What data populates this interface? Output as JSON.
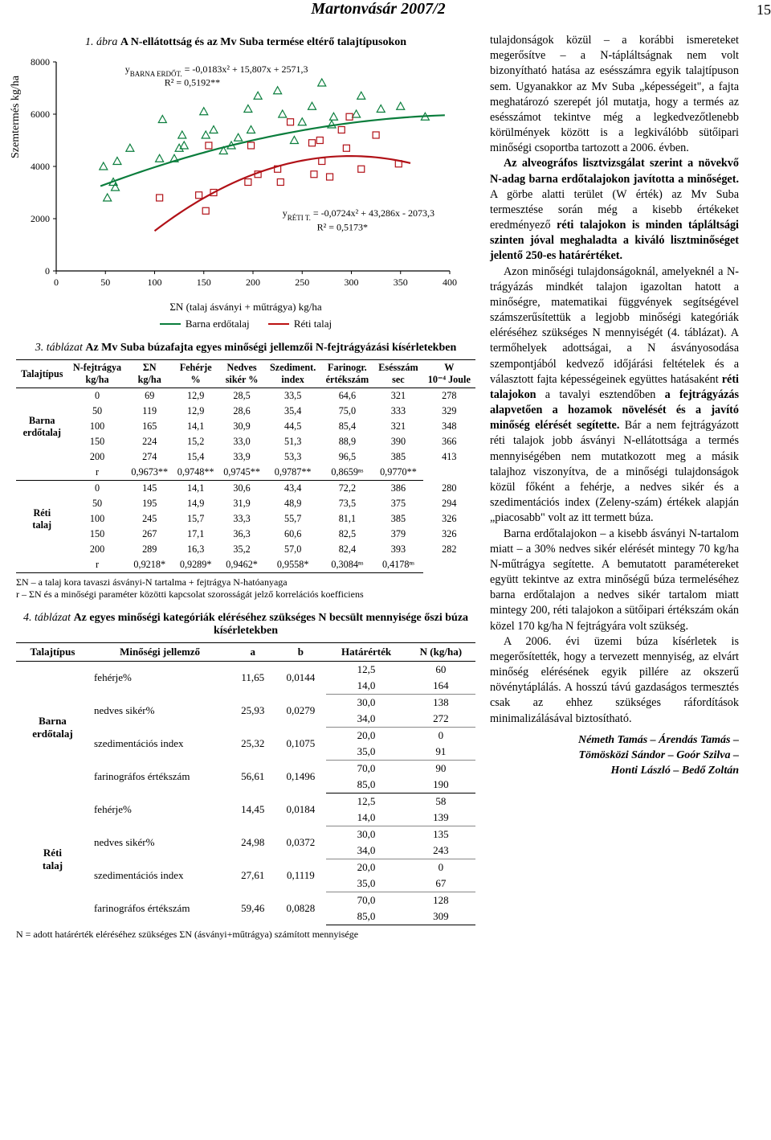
{
  "header": {
    "title": "Martonvásár 2007/2",
    "page": "15"
  },
  "figure1": {
    "title_num": "1. ábra",
    "title_text": "A N-ellátottság és az Mv Suba termése eltérő talajtípusokon",
    "type": "scatter",
    "ylabel": "Szemtermés kg/ha",
    "ylim": [
      0,
      8000
    ],
    "ytick_step": 2000,
    "xlim": [
      0,
      400
    ],
    "xtick_step": 50,
    "background": "#ffffff",
    "series": [
      {
        "name": "Barna erdőtalaj",
        "color": "#0a7d3c",
        "marker": "triangle",
        "points": [
          [
            48,
            4000
          ],
          [
            52,
            2800
          ],
          [
            58,
            3400
          ],
          [
            60,
            3200
          ],
          [
            62,
            4200
          ],
          [
            75,
            4700
          ],
          [
            105,
            4300
          ],
          [
            108,
            5800
          ],
          [
            120,
            4300
          ],
          [
            125,
            4700
          ],
          [
            128,
            5200
          ],
          [
            130,
            4800
          ],
          [
            150,
            6100
          ],
          [
            152,
            5200
          ],
          [
            160,
            5400
          ],
          [
            170,
            4600
          ],
          [
            178,
            4800
          ],
          [
            185,
            5100
          ],
          [
            195,
            6200
          ],
          [
            198,
            5400
          ],
          [
            205,
            6700
          ],
          [
            225,
            6900
          ],
          [
            230,
            6000
          ],
          [
            242,
            5000
          ],
          [
            250,
            5700
          ],
          [
            260,
            6300
          ],
          [
            270,
            7200
          ],
          [
            280,
            5600
          ],
          [
            282,
            5900
          ],
          [
            305,
            6000
          ],
          [
            310,
            6700
          ],
          [
            330,
            6200
          ],
          [
            350,
            6300
          ],
          [
            375,
            5900
          ]
        ]
      },
      {
        "name": "Réti talaj",
        "color": "#b11117",
        "marker": "square",
        "points": [
          [
            105,
            2800
          ],
          [
            145,
            2900
          ],
          [
            152,
            2300
          ],
          [
            155,
            4800
          ],
          [
            160,
            3000
          ],
          [
            195,
            3400
          ],
          [
            198,
            4800
          ],
          [
            205,
            3700
          ],
          [
            225,
            3900
          ],
          [
            228,
            3400
          ],
          [
            238,
            5700
          ],
          [
            260,
            4900
          ],
          [
            262,
            3700
          ],
          [
            268,
            5000
          ],
          [
            270,
            4200
          ],
          [
            278,
            3600
          ],
          [
            290,
            5400
          ],
          [
            295,
            4700
          ],
          [
            298,
            5900
          ],
          [
            310,
            3900
          ],
          [
            325,
            5200
          ],
          [
            348,
            4100
          ]
        ]
      }
    ],
    "eq_green": {
      "text": "y",
      "sub": "BARNA ERDŐT.",
      "rest": " = -0,0183x² + 15,807x + 2571,3",
      "r2": "R² = 0,5192**"
    },
    "eq_red": {
      "text": "y",
      "sub": "RÉTI T.",
      "rest": " = -0,0724x² + 43,286x - 2073,3",
      "r2": "R² = 0,5173*"
    },
    "legend_caption": "ΣN (talaj ásványi + műtrágya) kg/ha",
    "legend_green": "Barna erdőtalaj",
    "legend_red": "Réti talaj",
    "green_curve": {
      "a": -0.0183,
      "b": 15.807,
      "c": 2571.3
    },
    "red_curve": {
      "a": -0.0724,
      "b": 43.286,
      "c": -2073.3
    }
  },
  "table3": {
    "title_num": "3. táblázat",
    "title_text": "Az Mv Suba búzafajta egyes minőségi jellemzői N-fejtrágyázási kísérletekben",
    "headers": [
      "Talajtípus",
      "N-fejtrágya\nkg/ha",
      "ΣN\nkg/ha",
      "Fehérje\n%",
      "Nedves\nsikér %",
      "Szediment.\nindex",
      "Farinogr.\nértékszám",
      "Esésszám\nsec",
      "W\n10⁻⁴ Joule"
    ],
    "groups": [
      {
        "label": "Barna\nerdőtalaj",
        "rows": [
          [
            "0",
            "69",
            "12,9",
            "28,5",
            "33,5",
            "64,6",
            "321",
            "278"
          ],
          [
            "50",
            "119",
            "12,9",
            "28,6",
            "35,4",
            "75,0",
            "333",
            "329"
          ],
          [
            "100",
            "165",
            "14,1",
            "30,9",
            "44,5",
            "85,4",
            "321",
            "348"
          ],
          [
            "150",
            "224",
            "15,2",
            "33,0",
            "51,3",
            "88,9",
            "390",
            "366"
          ],
          [
            "200",
            "274",
            "15,4",
            "33,9",
            "53,3",
            "96,5",
            "385",
            "413"
          ]
        ],
        "r_row": [
          "r",
          "0,9673**",
          "0,9748**",
          "0,9745**",
          "0,9787**",
          "0,8659ⁿˢ",
          "0,9770**"
        ]
      },
      {
        "label": "Réti\ntalaj",
        "rows": [
          [
            "0",
            "145",
            "14,1",
            "30,6",
            "43,4",
            "72,2",
            "386",
            "280"
          ],
          [
            "50",
            "195",
            "14,9",
            "31,9",
            "48,9",
            "73,5",
            "375",
            "294"
          ],
          [
            "100",
            "245",
            "15,7",
            "33,3",
            "55,7",
            "81,1",
            "385",
            "326"
          ],
          [
            "150",
            "267",
            "17,1",
            "36,3",
            "60,6",
            "82,5",
            "379",
            "326"
          ],
          [
            "200",
            "289",
            "16,3",
            "35,2",
            "57,0",
            "82,4",
            "393",
            "282"
          ]
        ],
        "r_row": [
          "r",
          "0,9218*",
          "0,9289*",
          "0,9462*",
          "0,9558*",
          "0,3084ⁿˢ",
          "0,4178ⁿˢ"
        ]
      }
    ],
    "footnote1": "ΣN – a talaj kora tavaszi ásványi-N tartalma + fejtrágya N-hatóanyaga",
    "footnote2": "r – ΣN és a minőségi paraméter közötti kapcsolat szorosságát jelző korrelációs koefficiens"
  },
  "table4": {
    "title_num": "4. táblázat",
    "title_text": "Az egyes minőségi kategóriák eléréséhez szükséges N becsült mennyisége őszi búza kísérletekben",
    "headers": [
      "Talajtípus",
      "Minőségi jellemző",
      "a",
      "b",
      "Határérték",
      "N (kg/ha)"
    ],
    "groups": [
      {
        "label": "Barna\nerdőtalaj",
        "rows": [
          [
            "fehérje%",
            "11,65",
            "0,0144",
            [
              "12,5",
              "14,0"
            ],
            [
              "60",
              "164"
            ]
          ],
          [
            "nedves sikér%",
            "25,93",
            "0,0279",
            [
              "30,0",
              "34,0"
            ],
            [
              "138",
              "272"
            ]
          ],
          [
            "szedimentációs index",
            "25,32",
            "0,1075",
            [
              "20,0",
              "35,0"
            ],
            [
              "0",
              "91"
            ]
          ],
          [
            "farinográfos értékszám",
            "56,61",
            "0,1496",
            [
              "70,0",
              "85,0"
            ],
            [
              "90",
              "190"
            ]
          ]
        ]
      },
      {
        "label": "Réti\ntalaj",
        "rows": [
          [
            "fehérje%",
            "14,45",
            "0,0184",
            [
              "12,5",
              "14,0"
            ],
            [
              "58",
              "139"
            ]
          ],
          [
            "nedves sikér%",
            "24,98",
            "0,0372",
            [
              "30,0",
              "34,0"
            ],
            [
              "135",
              "243"
            ]
          ],
          [
            "szedimentációs index",
            "27,61",
            "0,1119",
            [
              "20,0",
              "35,0"
            ],
            [
              "0",
              "67"
            ]
          ],
          [
            "farinográfos értékszám",
            "59,46",
            "0,0828",
            [
              "70,0",
              "85,0"
            ],
            [
              "128",
              "309"
            ]
          ]
        ]
      }
    ],
    "footnote": "N = adott határérték eléréséhez szükséges ΣN (ásványi+műtrágya) számított mennyisége"
  },
  "right_text": {
    "p1": "tulajdonságok közül – a korábbi ismereteket megerősítve – a N-tápláltságnak nem volt bizonyítható hatása az esésszámra egyik talajtípuson sem. Ugyanakkor az Mv Suba „képességeit\", a fajta meghatározó szerepét jól mutatja, hogy a termés az esésszámot tekintve még a legkedvezőtlenebb körülmények között is a legkiválóbb sütőipari minőségi csoportba tartozott a 2006. évben.",
    "p2a": "Az alveográfos lisztvizsgálat szerint a növekvő N-adag barna erdőtalajokon javította a minőséget.",
    "p2b": " A görbe alatti terület (W érték) az Mv Suba termesztése során még a kisebb értékeket eredményező ",
    "p2c": "réti talajokon is minden tápláltsági szinten jóval meghaladta a kiváló lisztminőséget jelentő 250-es határértéket.",
    "p3a": "Azon minőségi tulajdonságoknál, amelyeknél a N-trágyázás mindkét talajon igazoltan hatott a minőségre, matematikai függvények segítségével számszerűsítettük a legjobb minőségi kategóriák eléréséhez szükséges N mennyiségét (4. táblázat). A termőhelyek adottságai, a N ásványosodása szempontjából kedvező időjárási feltételek és a választott fajta képességeinek együttes hatásaként ",
    "p3b": "réti talajokon",
    "p3c": " a tavalyi esztendőben ",
    "p3d": "a fejtrágyázás alapvetően a hozamok növelését és a javító minőség elérését segítette.",
    "p3e": " Bár a nem fejtrágyázott réti talajok jobb ásványi N-ellátottsága a termés mennyiségében nem mutatkozott meg a másik talajhoz viszonyítva, de a minőségi tulajdonságok közül főként a fehérje, a nedves sikér és a szedimentációs index (Zeleny-szám) értékek alapján „piacosabb\" volt az itt termett búza.",
    "p4": "Barna erdőtalajokon – a kisebb ásványi N-tartalom miatt – a 30% nedves sikér elérését mintegy 70 kg/ha N-műtrágya segítette. A bemutatott paramétereket együtt tekintve az extra minőségű búza termeléséhez barna erdőtalajon a nedves sikér tartalom miatt mintegy 200, réti talajokon a sütőipari értékszám okán közel 170 kg/ha N fejtrágyára volt szükség.",
    "p5": "A 2006. évi üzemi búza kísérletek is megerősítették, hogy a tervezett mennyiség, az elvárt minőség elérésének egyik pillére az okszerű növénytáplálás. A hosszú távú gazdaságos termesztés csak az ehhez szükséges ráfordítások minimalizálásával biztosítható.",
    "authors1": "Németh Tamás – Árendás Tamás –",
    "authors2": "Tömösközi Sándor – Goór Szilva –",
    "authors3": "Honti László – Bedő Zoltán"
  }
}
